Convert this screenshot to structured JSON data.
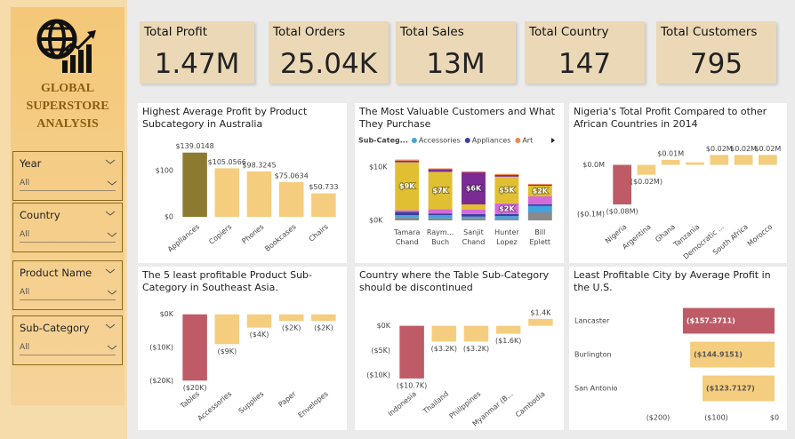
{
  "sidebar": {
    "title": "GLOBAL SUPERSTORE ANALYSIS",
    "slicers": [
      {
        "label": "Year",
        "value": "All"
      },
      {
        "label": "Country",
        "value": "All"
      },
      {
        "label": "Product Name",
        "value": "All"
      },
      {
        "label": "Sub-Category",
        "value": "All"
      }
    ]
  },
  "kpis": [
    {
      "label": "Total Profit",
      "value": "1.47M"
    },
    {
      "label": "Total Orders",
      "value": "25.04K"
    },
    {
      "label": "Total Sales",
      "value": "13M"
    },
    {
      "label": "Total Country",
      "value": "147"
    },
    {
      "label": "Total Customers",
      "value": "795"
    }
  ],
  "chart_data": [
    {
      "type": "bar",
      "title": "Highest Average Profit by Product Subcategory in Australia",
      "categories": [
        "Appliances",
        "Copiers",
        "Phones",
        "Bookcases",
        "Chairs"
      ],
      "values": [
        139.0148,
        105.0566,
        98.3245,
        75.0634,
        50.733
      ],
      "value_labels": [
        "$139.0148",
        "$105.0566",
        "$98.3245",
        "$75.0634",
        "$50.733"
      ],
      "colors": [
        "#8c7a30",
        "#f5cd7e",
        "#f5cd7e",
        "#f5cd7e",
        "#f5cd7e"
      ],
      "ylim": [
        0,
        150
      ],
      "yticks": [
        {
          "value": 0,
          "label": "$0"
        },
        {
          "value": 100,
          "label": "$100"
        }
      ]
    },
    {
      "type": "stacked_bar",
      "title": "The Most Valuable Customers and What They Purchase",
      "legend_title": "Sub-Categ...",
      "categories": [
        "Tamara Chand",
        "Raym... Buch",
        "Sanjit Chand",
        "Hunter Lopez",
        "Bill Eplett"
      ],
      "series": [
        {
          "color": "#8a8a8a",
          "values": [
            600,
            400,
            400,
            300,
            1500
          ]
        },
        {
          "name": "Accessories",
          "color": "#41a3e0",
          "values": [
            400,
            600,
            300,
            500,
            1200
          ]
        },
        {
          "name": "Appliances",
          "color": "#3b3f9e",
          "values": [
            600,
            300,
            500,
            400,
            300
          ]
        },
        {
          "color": "#d46bd8",
          "values": [
            300,
            800,
            800,
            2000,
            1500
          ],
          "value_labels": [
            null,
            null,
            null,
            "$2K",
            null
          ]
        },
        {
          "color": "#e0c032",
          "values": [
            9000,
            7000,
            1000,
            5000,
            2000
          ],
          "value_labels": [
            "$9K",
            "$7K",
            null,
            "$5K",
            "$2K"
          ]
        },
        {
          "color": "#7a2c94",
          "values": [
            300,
            500,
            6000,
            300,
            200
          ],
          "value_labels": [
            null,
            null,
            "$6K",
            null,
            null
          ]
        },
        {
          "name": "Art",
          "color": "#f0884a",
          "values": [
            200,
            150,
            200,
            200,
            150
          ]
        }
      ],
      "ylim": [
        0,
        12000
      ],
      "yticks": [
        {
          "value": 0,
          "label": "$0K"
        },
        {
          "value": 10000,
          "label": "$10K"
        }
      ]
    },
    {
      "type": "bar",
      "title": "Nigeria's Total Profit Compared to other African Countries in 2014",
      "categories": [
        "Nigeria",
        "Argentina",
        "Ghana",
        "Tanzania",
        "Democratic ...",
        "South Africa",
        "Morocco"
      ],
      "values": [
        -0.08,
        -0.02,
        0.01,
        0.005,
        0.02,
        0.02,
        0.02
      ],
      "value_labels": [
        "($0.08M)",
        "($0.02M)",
        "$0.01M",
        null,
        "$0.02M",
        "$0.02M",
        "$0.02M"
      ],
      "colors": [
        "#be5b67",
        "#f5cd7e",
        "#f5cd7e",
        "#f5cd7e",
        "#f5cd7e",
        "#f5cd7e",
        "#f5cd7e"
      ],
      "ylim": [
        -0.105,
        0.035
      ],
      "yticks": [
        {
          "value": 0,
          "label": "$0.0M"
        },
        {
          "value": -0.1,
          "label": "($0.1M)"
        }
      ]
    },
    {
      "type": "bar",
      "title": "The 5 least profitable Product Sub-Category in Southeast Asia.",
      "categories": [
        "Tables",
        "Accessories",
        "Supplies",
        "Paper",
        "Envelopes"
      ],
      "values": [
        -20000,
        -9000,
        -4000,
        -2000,
        -2000
      ],
      "value_labels": [
        "($20K)",
        "($9K)",
        "($4K)",
        "($2K)",
        "($2K)"
      ],
      "colors": [
        "#be5b67",
        "#f5cd7e",
        "#f5cd7e",
        "#f5cd7e",
        "#f5cd7e"
      ],
      "ylim": [
        -21000,
        1000
      ],
      "yticks": [
        {
          "value": 0,
          "label": "$0K"
        },
        {
          "value": -10000,
          "label": "($10K)"
        },
        {
          "value": -20000,
          "label": "($20K)"
        }
      ]
    },
    {
      "type": "bar",
      "title": "Country where the Table Sub-Category should be discontinued",
      "categories": [
        "Indonesia",
        "Thailand",
        "Philippines",
        "Myanmar (B...",
        "Cambodia"
      ],
      "values": [
        -10700,
        -3200,
        -3200,
        -1600,
        1400
      ],
      "value_labels": [
        "($10.7K)",
        "($3.2K)",
        "($3.2K)",
        "($1.6K)",
        "$1.4K"
      ],
      "colors": [
        "#be5b67",
        "#f5cd7e",
        "#f5cd7e",
        "#f5cd7e",
        "#f5cd7e"
      ],
      "ylim": [
        -11800,
        3000
      ],
      "yticks": [
        {
          "value": 0,
          "label": "$0K"
        },
        {
          "value": -5000,
          "label": "($5K)"
        },
        {
          "value": -10000,
          "label": "($10K)"
        }
      ]
    },
    {
      "type": "hbar",
      "title": "Least Profitable City by Average Profit in the U.S.",
      "categories": [
        "Lancaster",
        "Burlington",
        "San Antonio"
      ],
      "values": [
        -157.3711,
        -144.9151,
        -123.7127
      ],
      "value_labels": [
        "($157.3711)",
        "($144.9151)",
        "($123.7127)"
      ],
      "colors": [
        "#be5b67",
        "#f5cd7e",
        "#f5cd7e"
      ],
      "xlim": [
        -200,
        0
      ],
      "xticks": [
        {
          "value": -200,
          "label": "($200)"
        },
        {
          "value": -100,
          "label": "($100)"
        },
        {
          "value": 0,
          "label": "$0"
        }
      ]
    }
  ]
}
